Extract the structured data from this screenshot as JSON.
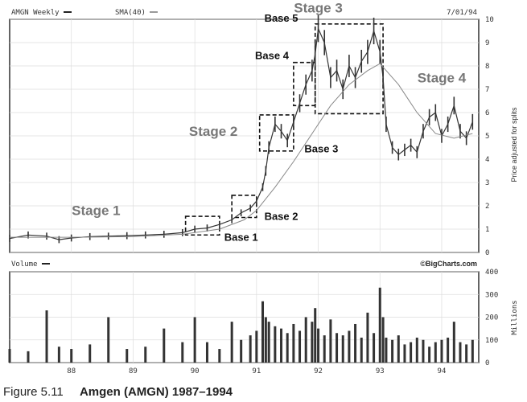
{
  "chart_data": [
    {
      "type": "line",
      "panel": "price",
      "header": {
        "ticker_label": "AMGN Weekly",
        "sma_label": "SMA(40)",
        "date_label": "7/01/94"
      },
      "ylabel": "Price adjusted for splits",
      "y_axis_side": "right",
      "ylim": [
        0,
        10
      ],
      "y_ticks": [
        0,
        1,
        2,
        3,
        4,
        5,
        6,
        7,
        8,
        9,
        10
      ],
      "xlim": [
        1987.0,
        1994.6
      ],
      "x_tick_labels": [
        "88",
        "89",
        "90",
        "91",
        "92",
        "93",
        "94"
      ],
      "x_tick_values": [
        1988,
        1989,
        1990,
        1991,
        1992,
        1993,
        1994
      ],
      "grid": true,
      "series": [
        {
          "name": "AMGN Weekly",
          "style": "bar",
          "color": "#333333",
          "x": [
            1987.0,
            1987.3,
            1987.6,
            1987.8,
            1988.0,
            1988.3,
            1988.6,
            1988.9,
            1989.2,
            1989.5,
            1989.8,
            1990.0,
            1990.2,
            1990.4,
            1990.6,
            1990.75,
            1990.9,
            1991.0,
            1991.1,
            1991.15,
            1991.2,
            1991.3,
            1991.4,
            1991.5,
            1991.6,
            1991.7,
            1991.8,
            1991.9,
            1991.95,
            1992.0,
            1992.1,
            1992.2,
            1992.3,
            1992.4,
            1992.5,
            1992.6,
            1992.7,
            1992.8,
            1992.9,
            1993.0,
            1993.05,
            1993.1,
            1993.2,
            1993.3,
            1993.4,
            1993.5,
            1993.6,
            1993.7,
            1993.8,
            1993.9,
            1994.0,
            1994.1,
            1994.2,
            1994.3,
            1994.4,
            1994.5
          ],
          "y": [
            0.6,
            0.75,
            0.7,
            0.55,
            0.62,
            0.68,
            0.7,
            0.72,
            0.75,
            0.78,
            0.85,
            1.0,
            1.05,
            1.2,
            1.4,
            1.7,
            1.9,
            2.2,
            2.8,
            3.5,
            4.5,
            5.5,
            5.2,
            4.8,
            5.6,
            6.4,
            7.2,
            7.8,
            8.5,
            9.6,
            9.0,
            7.5,
            7.8,
            7.0,
            8.0,
            7.5,
            8.2,
            8.6,
            9.5,
            8.6,
            7.5,
            5.5,
            4.5,
            4.2,
            4.4,
            4.6,
            4.3,
            5.2,
            5.8,
            6.0,
            5.0,
            5.5,
            6.3,
            5.2,
            4.9,
            5.6
          ]
        },
        {
          "name": "SMA(40)",
          "style": "line",
          "color": "#888888",
          "x": [
            1987.0,
            1988.0,
            1989.0,
            1989.8,
            1990.4,
            1990.8,
            1991.0,
            1991.3,
            1991.6,
            1991.9,
            1992.2,
            1992.5,
            1992.8,
            1993.0,
            1993.3,
            1993.6,
            1993.9,
            1994.2,
            1994.5
          ],
          "y": [
            0.65,
            0.65,
            0.68,
            0.78,
            1.0,
            1.4,
            1.8,
            2.8,
            3.9,
            5.1,
            6.3,
            7.2,
            7.8,
            8.1,
            7.2,
            6.0,
            5.1,
            4.9,
            5.1
          ]
        }
      ],
      "annotations": [
        {
          "label": "Stage 1",
          "x": 1988.4,
          "y": 1.6
        },
        {
          "label": "Stage 2",
          "x": 1990.3,
          "y": 5.0
        },
        {
          "label": "Stage 3",
          "x": 1992.0,
          "y": 10.3
        },
        {
          "label": "Stage 4",
          "x": 1994.0,
          "y": 7.3
        },
        {
          "label": "Base 1",
          "x": 1990.75,
          "y": 0.5
        },
        {
          "label": "Base 2",
          "x": 1991.4,
          "y": 1.4
        },
        {
          "label": "Base 3",
          "x": 1992.05,
          "y": 4.3
        },
        {
          "label": "Base 4",
          "x": 1991.25,
          "y": 8.3
        },
        {
          "label": "Base 5",
          "x": 1991.4,
          "y": 9.9
        }
      ],
      "base_boxes": [
        {
          "label": "Base 1",
          "x_range": [
            1989.85,
            1990.4
          ],
          "y_range": [
            0.75,
            1.55
          ]
        },
        {
          "label": "Base 2",
          "x_range": [
            1990.6,
            1991.0
          ],
          "y_range": [
            1.5,
            2.45
          ]
        },
        {
          "label": "Base 3",
          "x_range": [
            1991.05,
            1991.6
          ],
          "y_range": [
            4.35,
            5.9
          ]
        },
        {
          "label": "Base 4",
          "x_range": [
            1991.6,
            1991.95
          ],
          "y_range": [
            6.3,
            8.15
          ]
        },
        {
          "label": "Base 5 / Stage 3",
          "x_range": [
            1991.95,
            1993.05
          ],
          "y_range": [
            5.95,
            9.8
          ]
        }
      ]
    },
    {
      "type": "bar",
      "panel": "volume",
      "header": {
        "volume_label": "Volume",
        "source_label": "©BigCharts.com"
      },
      "ylabel": "Millions",
      "y_axis_side": "right",
      "ylim": [
        0,
        400
      ],
      "y_ticks": [
        0,
        100,
        200,
        300,
        400
      ],
      "xlim": [
        1987.0,
        1994.6
      ],
      "grid": true,
      "color": "#333333",
      "x": [
        1987.0,
        1987.3,
        1987.6,
        1987.8,
        1988.0,
        1988.3,
        1988.6,
        1988.9,
        1989.2,
        1989.5,
        1989.8,
        1990.0,
        1990.2,
        1990.4,
        1990.6,
        1990.75,
        1990.9,
        1991.0,
        1991.1,
        1991.15,
        1991.2,
        1991.3,
        1991.4,
        1991.5,
        1991.6,
        1991.7,
        1991.8,
        1991.9,
        1991.95,
        1992.0,
        1992.1,
        1992.2,
        1992.3,
        1992.4,
        1992.5,
        1992.6,
        1992.7,
        1992.8,
        1992.9,
        1993.0,
        1993.05,
        1993.1,
        1993.2,
        1993.3,
        1993.4,
        1993.5,
        1993.6,
        1993.7,
        1993.8,
        1993.9,
        1994.0,
        1994.1,
        1994.2,
        1994.3,
        1994.4,
        1994.5
      ],
      "values": [
        60,
        50,
        230,
        70,
        60,
        80,
        200,
        60,
        70,
        150,
        90,
        200,
        90,
        60,
        180,
        100,
        120,
        140,
        270,
        200,
        180,
        160,
        150,
        130,
        170,
        140,
        200,
        180,
        240,
        150,
        120,
        190,
        130,
        120,
        140,
        170,
        110,
        220,
        130,
        330,
        200,
        110,
        100,
        120,
        80,
        90,
        110,
        100,
        70,
        90,
        100,
        110,
        180,
        90,
        80,
        100
      ]
    }
  ],
  "caption": {
    "figure_number": "Figure 5.11",
    "title": "Amgen (AMGN) 1987–1994"
  }
}
